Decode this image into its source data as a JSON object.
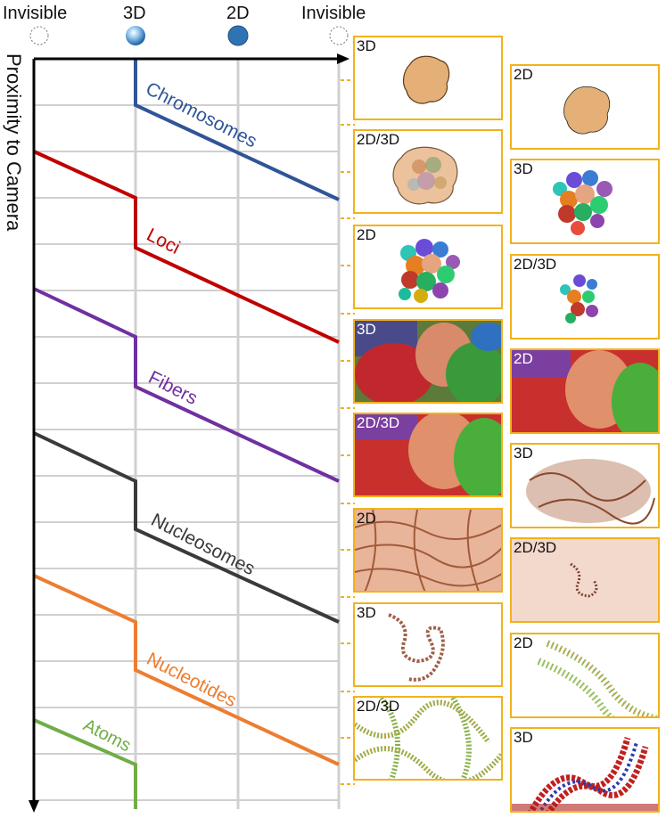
{
  "header": {
    "invisible_left": "Invisible",
    "three_d": "3D",
    "two_d": "2D",
    "invisible_right": "Invisible"
  },
  "y_axis_label": "Proximity to Camera",
  "colors": {
    "chromosomes": "#2f5597",
    "loci": "#c00000",
    "fibers": "#7030a0",
    "nucleosomes": "#3a3a3a",
    "nucleotides": "#ed7d31",
    "atoms": "#70ad47",
    "panel_border": "#f2b21b",
    "grid": "#d0d0d0"
  },
  "levels": [
    {
      "name": "Chromosomes",
      "color_key": "chromosomes"
    },
    {
      "name": "Loci",
      "color_key": "loci"
    },
    {
      "name": "Fibers",
      "color_key": "fibers"
    },
    {
      "name": "Nucleosomes",
      "color_key": "nucleosomes"
    },
    {
      "name": "Nucleotides",
      "color_key": "nucleotides"
    },
    {
      "name": "Atoms",
      "color_key": "atoms"
    }
  ],
  "panels_left": [
    {
      "label": "3D",
      "image": "chromosome-blob"
    },
    {
      "label": "2D/3D",
      "image": "chromosome-outline-with-loci"
    },
    {
      "label": "2D",
      "image": "loci-cluster"
    },
    {
      "label": "3D",
      "image": "fibers-dense"
    },
    {
      "label": "2D/3D",
      "image": "fibers-nucleosomes"
    },
    {
      "label": "2D",
      "image": "nucleosome-mesh"
    },
    {
      "label": "3D",
      "image": "nucleosome-strand"
    },
    {
      "label": "2D/3D",
      "image": "dna-helices"
    }
  ],
  "panels_right": [
    {
      "label": "2D",
      "image": "chromosome-flat"
    },
    {
      "label": "3D",
      "image": "loci-3d"
    },
    {
      "label": "2D/3D",
      "image": "loci-small"
    },
    {
      "label": "2D",
      "image": "fibers-flat"
    },
    {
      "label": "3D",
      "image": "nucleosome-cloud"
    },
    {
      "label": "2D/3D",
      "image": "nucleosome-faded"
    },
    {
      "label": "2D",
      "image": "nucleotide-helix"
    },
    {
      "label": "3D",
      "image": "atom-helix"
    }
  ]
}
